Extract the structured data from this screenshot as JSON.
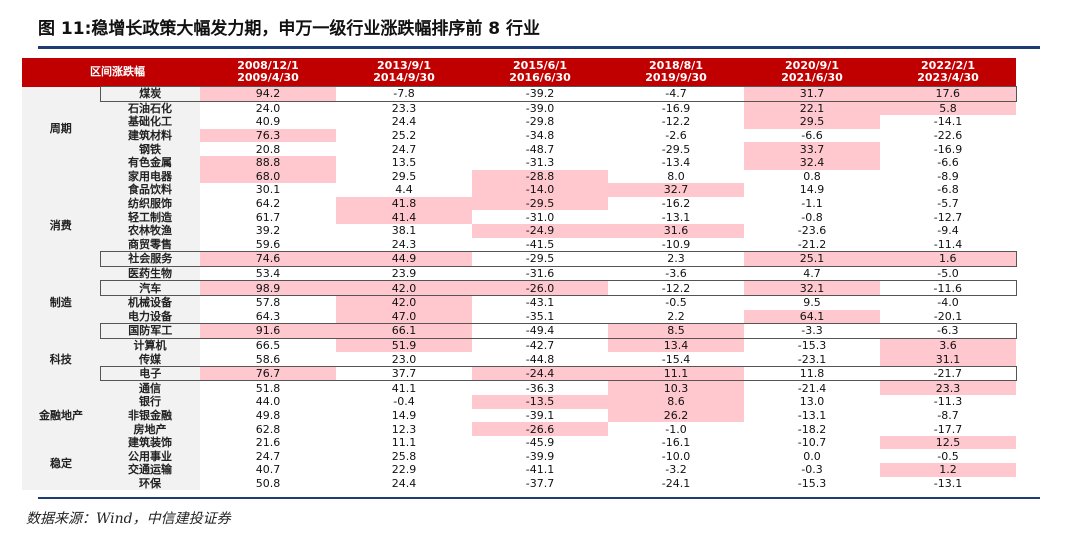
{
  "title": "图 11:稳增长政策大幅发力期，申万一级行业涨跌幅排序前 8 行业",
  "source": "数据来源：Wind，中信建投证券",
  "table": {
    "corner_label": "区间涨跌幅",
    "headers": [
      {
        "line1": "2008/12/1",
        "line2": "2009/4/30"
      },
      {
        "line1": "2013/9/1",
        "line2": "2014/9/30"
      },
      {
        "line1": "2015/6/1",
        "line2": "2016/6/30"
      },
      {
        "line1": "2018/8/1",
        "line2": "2019/9/30"
      },
      {
        "line1": "2020/9/1",
        "line2": "2021/6/30"
      },
      {
        "line1": "2022/2/1",
        "line2": "2023/4/30"
      }
    ],
    "groups": {
      "zhouqi": "周期",
      "xiaofei": "消费",
      "zhizao": "制造",
      "keji": "科技",
      "jinrong": "金融地产",
      "wending": "稳定"
    },
    "rows": [
      {
        "name": "煤炭",
        "values": [
          "94.2",
          "-7.8",
          "-39.2",
          "-4.7",
          "31.7",
          "17.6"
        ],
        "highlight": [
          true,
          false,
          false,
          false,
          true,
          true
        ]
      },
      {
        "name": "石油石化",
        "values": [
          "24.0",
          "23.3",
          "-39.0",
          "-16.9",
          "22.1",
          "5.8"
        ],
        "highlight": [
          false,
          false,
          false,
          false,
          true,
          true
        ]
      },
      {
        "name": "基础化工",
        "values": [
          "40.9",
          "24.4",
          "-29.8",
          "-12.2",
          "29.5",
          "-14.1"
        ],
        "highlight": [
          false,
          false,
          false,
          false,
          true,
          false
        ]
      },
      {
        "name": "建筑材料",
        "values": [
          "76.3",
          "25.2",
          "-34.8",
          "-2.6",
          "-6.6",
          "-22.6"
        ],
        "highlight": [
          true,
          false,
          false,
          false,
          false,
          false
        ]
      },
      {
        "name": "钢铁",
        "values": [
          "20.8",
          "24.7",
          "-48.7",
          "-29.5",
          "33.7",
          "-16.9"
        ],
        "highlight": [
          false,
          false,
          false,
          false,
          true,
          false
        ]
      },
      {
        "name": "有色金属",
        "values": [
          "88.8",
          "13.5",
          "-31.3",
          "-13.4",
          "32.4",
          "-6.6"
        ],
        "highlight": [
          true,
          false,
          false,
          false,
          true,
          false
        ]
      },
      {
        "name": "家用电器",
        "values": [
          "68.0",
          "29.5",
          "-28.8",
          "8.0",
          "0.8",
          "-8.9"
        ],
        "highlight": [
          true,
          false,
          true,
          false,
          false,
          false
        ]
      },
      {
        "name": "食品饮料",
        "values": [
          "30.1",
          "4.4",
          "-14.0",
          "32.7",
          "14.9",
          "-6.8"
        ],
        "highlight": [
          false,
          false,
          true,
          true,
          false,
          false
        ]
      },
      {
        "name": "纺织服饰",
        "values": [
          "64.2",
          "41.8",
          "-29.5",
          "-16.2",
          "-1.1",
          "-5.7"
        ],
        "highlight": [
          false,
          true,
          true,
          false,
          false,
          false
        ]
      },
      {
        "name": "轻工制造",
        "values": [
          "61.7",
          "41.4",
          "-31.0",
          "-13.1",
          "-0.8",
          "-12.7"
        ],
        "highlight": [
          false,
          true,
          false,
          false,
          false,
          false
        ]
      },
      {
        "name": "农林牧渔",
        "values": [
          "39.2",
          "38.1",
          "-24.9",
          "31.6",
          "-23.6",
          "-9.4"
        ],
        "highlight": [
          false,
          false,
          true,
          true,
          false,
          false
        ]
      },
      {
        "name": "商贸零售",
        "values": [
          "59.6",
          "24.3",
          "-41.5",
          "-10.9",
          "-21.2",
          "-11.4"
        ],
        "highlight": [
          false,
          false,
          false,
          false,
          false,
          false
        ]
      },
      {
        "name": "社会服务",
        "values": [
          "74.6",
          "44.9",
          "-29.5",
          "2.3",
          "25.1",
          "1.6"
        ],
        "highlight": [
          true,
          true,
          false,
          false,
          true,
          true
        ]
      },
      {
        "name": "医药生物",
        "values": [
          "53.4",
          "23.9",
          "-31.6",
          "-3.6",
          "4.7",
          "-5.0"
        ],
        "highlight": [
          false,
          false,
          false,
          false,
          false,
          false
        ]
      },
      {
        "name": "汽车",
        "values": [
          "98.9",
          "42.0",
          "-26.0",
          "-12.2",
          "32.1",
          "-11.6"
        ],
        "highlight": [
          true,
          true,
          true,
          false,
          true,
          false
        ]
      },
      {
        "name": "机械设备",
        "values": [
          "57.8",
          "42.0",
          "-43.1",
          "-0.5",
          "9.5",
          "-4.0"
        ],
        "highlight": [
          false,
          true,
          false,
          false,
          false,
          false
        ]
      },
      {
        "name": "电力设备",
        "values": [
          "64.3",
          "47.0",
          "-35.1",
          "2.2",
          "64.1",
          "-20.1"
        ],
        "highlight": [
          false,
          true,
          false,
          false,
          true,
          false
        ]
      },
      {
        "name": "国防军工",
        "values": [
          "91.6",
          "66.1",
          "-49.4",
          "8.5",
          "-3.3",
          "-6.3"
        ],
        "highlight": [
          true,
          true,
          false,
          true,
          false,
          false
        ]
      },
      {
        "name": "计算机",
        "values": [
          "66.5",
          "51.9",
          "-42.7",
          "13.4",
          "-15.3",
          "3.6"
        ],
        "highlight": [
          false,
          true,
          false,
          true,
          false,
          true
        ]
      },
      {
        "name": "传媒",
        "values": [
          "58.6",
          "23.0",
          "-44.8",
          "-15.4",
          "-23.1",
          "31.1"
        ],
        "highlight": [
          false,
          false,
          false,
          false,
          false,
          true
        ]
      },
      {
        "name": "电子",
        "values": [
          "76.7",
          "37.7",
          "-24.4",
          "11.1",
          "11.8",
          "-21.7"
        ],
        "highlight": [
          true,
          false,
          true,
          true,
          false,
          false
        ]
      },
      {
        "name": "通信",
        "values": [
          "51.8",
          "41.1",
          "-36.3",
          "10.3",
          "-21.4",
          "23.3"
        ],
        "highlight": [
          false,
          false,
          false,
          true,
          false,
          true
        ]
      },
      {
        "name": "银行",
        "values": [
          "44.0",
          "-0.4",
          "-13.5",
          "8.6",
          "13.0",
          "-11.3"
        ],
        "highlight": [
          false,
          false,
          true,
          true,
          false,
          false
        ]
      },
      {
        "name": "非银金融",
        "values": [
          "49.8",
          "14.9",
          "-39.1",
          "26.2",
          "-13.1",
          "-8.7"
        ],
        "highlight": [
          false,
          false,
          false,
          true,
          false,
          false
        ]
      },
      {
        "name": "房地产",
        "values": [
          "62.8",
          "12.3",
          "-26.6",
          "-1.0",
          "-18.2",
          "-17.7"
        ],
        "highlight": [
          false,
          false,
          true,
          false,
          false,
          false
        ]
      },
      {
        "name": "建筑装饰",
        "values": [
          "21.6",
          "11.1",
          "-45.9",
          "-16.1",
          "-10.7",
          "12.5"
        ],
        "highlight": [
          false,
          false,
          false,
          false,
          false,
          true
        ]
      },
      {
        "name": "公用事业",
        "values": [
          "24.7",
          "25.8",
          "-39.9",
          "-10.0",
          "0.0",
          "-0.5"
        ],
        "highlight": [
          false,
          false,
          false,
          false,
          false,
          false
        ]
      },
      {
        "name": "交通运输",
        "values": [
          "40.7",
          "22.9",
          "-41.1",
          "-3.2",
          "-0.3",
          "1.2"
        ],
        "highlight": [
          false,
          false,
          false,
          false,
          false,
          true
        ]
      },
      {
        "name": "环保",
        "values": [
          "50.8",
          "24.4",
          "-37.7",
          "-24.1",
          "-15.3",
          "-13.1"
        ],
        "highlight": [
          false,
          false,
          false,
          false,
          false,
          false
        ]
      }
    ]
  }
}
